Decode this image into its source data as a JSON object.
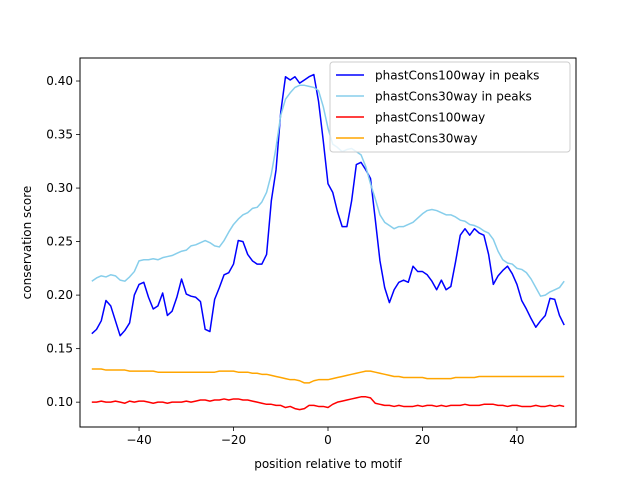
{
  "chart_data": {
    "type": "line",
    "title": "",
    "xlabel": "position relative to motif",
    "ylabel": "conservation score",
    "xlim": [
      -52.5,
      52.5
    ],
    "ylim": [
      0.0768,
      0.4215
    ],
    "xticks": [
      -40,
      -20,
      0,
      20,
      40
    ],
    "xtick_labels": [
      "−40",
      "−20",
      "0",
      "20",
      "40"
    ],
    "yticks": [
      0.1,
      0.15,
      0.2,
      0.25,
      0.3,
      0.35,
      0.4
    ],
    "ytick_labels": [
      "0.10",
      "0.15",
      "0.20",
      "0.25",
      "0.30",
      "0.35",
      "0.40"
    ],
    "grid": false,
    "legend_position": "top-right",
    "x": [
      -50,
      -49,
      -48,
      -47,
      -46,
      -45,
      -44,
      -43,
      -42,
      -41,
      -40,
      -39,
      -38,
      -37,
      -36,
      -35,
      -34,
      -33,
      -32,
      -31,
      -30,
      -29,
      -28,
      -27,
      -26,
      -25,
      -24,
      -23,
      -22,
      -21,
      -20,
      -19,
      -18,
      -17,
      -16,
      -15,
      -14,
      -13,
      -12,
      -11,
      -10,
      -9,
      -8,
      -7,
      -6,
      -5,
      -4,
      -3,
      -2,
      -1,
      0,
      1,
      2,
      3,
      4,
      5,
      6,
      7,
      8,
      9,
      10,
      11,
      12,
      13,
      14,
      15,
      16,
      17,
      18,
      19,
      20,
      21,
      22,
      23,
      24,
      25,
      26,
      27,
      28,
      29,
      30,
      31,
      32,
      33,
      34,
      35,
      36,
      37,
      38,
      39,
      40,
      41,
      42,
      43,
      44,
      45,
      46,
      47,
      48,
      49,
      50
    ],
    "series": [
      {
        "name": "phastCons100way in peaks",
        "color": "#0000ff",
        "values": [
          0.164,
          0.168,
          0.176,
          0.195,
          0.19,
          0.176,
          0.162,
          0.167,
          0.174,
          0.2,
          0.21,
          0.212,
          0.198,
          0.187,
          0.19,
          0.202,
          0.181,
          0.185,
          0.198,
          0.215,
          0.201,
          0.199,
          0.198,
          0.194,
          0.168,
          0.166,
          0.196,
          0.207,
          0.219,
          0.221,
          0.229,
          0.251,
          0.25,
          0.238,
          0.232,
          0.229,
          0.229,
          0.238,
          0.288,
          0.317,
          0.371,
          0.404,
          0.401,
          0.404,
          0.398,
          0.401,
          0.404,
          0.406,
          0.381,
          0.344,
          0.304,
          0.296,
          0.278,
          0.264,
          0.264,
          0.288,
          0.322,
          0.324,
          0.317,
          0.309,
          0.271,
          0.232,
          0.207,
          0.193,
          0.205,
          0.212,
          0.214,
          0.212,
          0.227,
          0.222,
          0.222,
          0.219,
          0.213,
          0.205,
          0.214,
          0.205,
          0.208,
          0.231,
          0.256,
          0.262,
          0.256,
          0.262,
          0.258,
          0.256,
          0.238,
          0.21,
          0.218,
          0.223,
          0.227,
          0.22,
          0.21,
          0.195,
          0.187,
          0.178,
          0.17,
          0.176,
          0.181,
          0.197,
          0.196,
          0.181,
          0.172
        ]
      },
      {
        "name": "phastCons30way in peaks",
        "color": "#87ceeb",
        "values": [
          0.213,
          0.216,
          0.218,
          0.217,
          0.219,
          0.218,
          0.214,
          0.213,
          0.217,
          0.222,
          0.232,
          0.233,
          0.233,
          0.234,
          0.233,
          0.235,
          0.236,
          0.237,
          0.239,
          0.241,
          0.242,
          0.246,
          0.247,
          0.249,
          0.251,
          0.249,
          0.246,
          0.245,
          0.251,
          0.259,
          0.266,
          0.271,
          0.275,
          0.277,
          0.281,
          0.282,
          0.287,
          0.296,
          0.313,
          0.338,
          0.368,
          0.383,
          0.389,
          0.394,
          0.396,
          0.396,
          0.395,
          0.394,
          0.391,
          0.376,
          0.356,
          0.341,
          0.338,
          0.334,
          0.336,
          0.337,
          0.334,
          0.331,
          0.32,
          0.304,
          0.29,
          0.275,
          0.268,
          0.265,
          0.262,
          0.264,
          0.264,
          0.266,
          0.268,
          0.272,
          0.276,
          0.279,
          0.28,
          0.279,
          0.277,
          0.275,
          0.275,
          0.273,
          0.27,
          0.269,
          0.266,
          0.265,
          0.263,
          0.26,
          0.258,
          0.252,
          0.241,
          0.233,
          0.23,
          0.229,
          0.225,
          0.224,
          0.221,
          0.215,
          0.207,
          0.199,
          0.2,
          0.203,
          0.205,
          0.207,
          0.213
        ]
      },
      {
        "name": "phastCons100way",
        "color": "#ff0000",
        "values": [
          0.1,
          0.1,
          0.101,
          0.1,
          0.1,
          0.101,
          0.1,
          0.099,
          0.101,
          0.1,
          0.101,
          0.101,
          0.1,
          0.099,
          0.1,
          0.1,
          0.099,
          0.1,
          0.1,
          0.1,
          0.101,
          0.1,
          0.101,
          0.102,
          0.102,
          0.101,
          0.102,
          0.102,
          0.103,
          0.102,
          0.103,
          0.103,
          0.102,
          0.102,
          0.101,
          0.1,
          0.099,
          0.098,
          0.098,
          0.097,
          0.097,
          0.095,
          0.096,
          0.094,
          0.093,
          0.094,
          0.097,
          0.097,
          0.096,
          0.096,
          0.095,
          0.098,
          0.1,
          0.101,
          0.102,
          0.103,
          0.104,
          0.105,
          0.105,
          0.104,
          0.099,
          0.098,
          0.097,
          0.097,
          0.096,
          0.097,
          0.096,
          0.096,
          0.096,
          0.097,
          0.096,
          0.097,
          0.097,
          0.096,
          0.097,
          0.096,
          0.097,
          0.097,
          0.097,
          0.098,
          0.097,
          0.097,
          0.097,
          0.098,
          0.098,
          0.098,
          0.097,
          0.097,
          0.096,
          0.097,
          0.097,
          0.096,
          0.096,
          0.096,
          0.097,
          0.096,
          0.096,
          0.097,
          0.096,
          0.097,
          0.096
        ]
      },
      {
        "name": "phastCons30way",
        "color": "#ffa500",
        "values": [
          0.131,
          0.131,
          0.131,
          0.13,
          0.13,
          0.13,
          0.13,
          0.13,
          0.129,
          0.129,
          0.129,
          0.129,
          0.129,
          0.129,
          0.128,
          0.128,
          0.128,
          0.128,
          0.128,
          0.128,
          0.128,
          0.128,
          0.128,
          0.128,
          0.128,
          0.128,
          0.128,
          0.129,
          0.129,
          0.129,
          0.129,
          0.128,
          0.128,
          0.128,
          0.127,
          0.127,
          0.126,
          0.126,
          0.125,
          0.124,
          0.123,
          0.122,
          0.121,
          0.121,
          0.12,
          0.118,
          0.118,
          0.12,
          0.121,
          0.121,
          0.121,
          0.122,
          0.123,
          0.124,
          0.125,
          0.126,
          0.127,
          0.128,
          0.129,
          0.129,
          0.128,
          0.127,
          0.126,
          0.125,
          0.124,
          0.124,
          0.123,
          0.123,
          0.123,
          0.123,
          0.123,
          0.122,
          0.122,
          0.122,
          0.122,
          0.122,
          0.122,
          0.123,
          0.123,
          0.123,
          0.123,
          0.123,
          0.124,
          0.124,
          0.124,
          0.124,
          0.124,
          0.124,
          0.124,
          0.124,
          0.124,
          0.124,
          0.124,
          0.124,
          0.124,
          0.124,
          0.124,
          0.124,
          0.124,
          0.124,
          0.124
        ]
      }
    ]
  }
}
